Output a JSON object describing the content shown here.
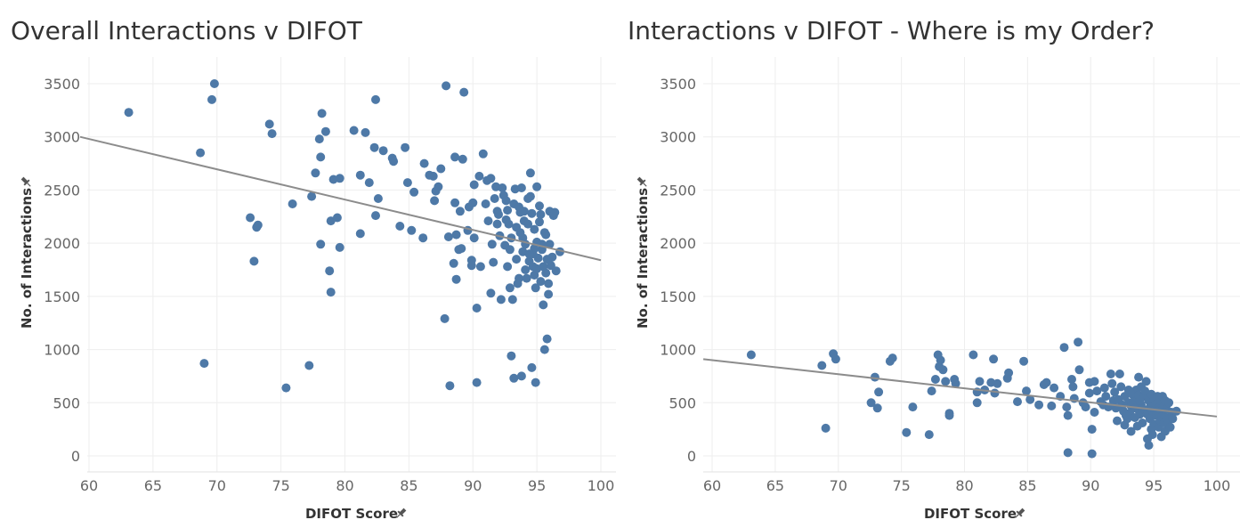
{
  "colors": {
    "point": "#4e79a7",
    "trend": "#8c8c8c",
    "grid": "#eeeeee",
    "zero": "#e2e2e2"
  },
  "chart_data": [
    {
      "type": "scatter",
      "title": "Overall Interactions v DIFOT",
      "xlabel": "DIFOT Score",
      "ylabel": "No. of Interactions",
      "xlim": [
        60,
        100
      ],
      "ylim": [
        0,
        3500
      ],
      "xticks": [
        60,
        65,
        70,
        75,
        80,
        85,
        90,
        95,
        100
      ],
      "yticks": [
        0,
        500,
        1000,
        1500,
        2000,
        2500,
        3000,
        3500
      ],
      "trend": [
        [
          59.3,
          3000
        ],
        [
          100,
          1840
        ]
      ],
      "points": [
        [
          63.1,
          3230
        ],
        [
          68.7,
          2850
        ],
        [
          69.0,
          870
        ],
        [
          69.6,
          3350
        ],
        [
          69.8,
          3500
        ],
        [
          72.6,
          2240
        ],
        [
          72.9,
          1830
        ],
        [
          73.1,
          2150
        ],
        [
          73.2,
          2170
        ],
        [
          74.1,
          3120
        ],
        [
          74.3,
          3030
        ],
        [
          75.4,
          640
        ],
        [
          75.9,
          2370
        ],
        [
          77.2,
          850
        ],
        [
          77.4,
          2440
        ],
        [
          77.7,
          2660
        ],
        [
          78.0,
          2980
        ],
        [
          78.1,
          2810
        ],
        [
          78.1,
          1990
        ],
        [
          78.2,
          3220
        ],
        [
          78.5,
          3050
        ],
        [
          78.8,
          1740
        ],
        [
          78.9,
          2210
        ],
        [
          78.9,
          1540
        ],
        [
          79.1,
          2600
        ],
        [
          79.4,
          2240
        ],
        [
          79.6,
          2610
        ],
        [
          79.6,
          1960
        ],
        [
          80.7,
          3060
        ],
        [
          81.2,
          2640
        ],
        [
          81.2,
          2090
        ],
        [
          81.6,
          3040
        ],
        [
          81.9,
          2570
        ],
        [
          82.3,
          2900
        ],
        [
          82.4,
          2260
        ],
        [
          82.4,
          3350
        ],
        [
          82.6,
          2420
        ],
        [
          83.0,
          2870
        ],
        [
          83.7,
          2800
        ],
        [
          83.8,
          2770
        ],
        [
          84.3,
          2160
        ],
        [
          84.7,
          2900
        ],
        [
          84.9,
          2570
        ],
        [
          85.2,
          2120
        ],
        [
          85.4,
          2480
        ],
        [
          86.1,
          2050
        ],
        [
          86.2,
          2750
        ],
        [
          86.6,
          2640
        ],
        [
          86.9,
          2630
        ],
        [
          87.0,
          2400
        ],
        [
          87.1,
          2490
        ],
        [
          87.3,
          2530
        ],
        [
          87.5,
          2700
        ],
        [
          87.8,
          1290
        ],
        [
          87.9,
          3480
        ],
        [
          88.1,
          2060
        ],
        [
          88.2,
          660
        ],
        [
          88.5,
          1810
        ],
        [
          88.6,
          2810
        ],
        [
          88.6,
          2380
        ],
        [
          88.7,
          2080
        ],
        [
          88.7,
          1660
        ],
        [
          88.9,
          1940
        ],
        [
          89.0,
          2300
        ],
        [
          89.1,
          1950
        ],
        [
          89.2,
          2790
        ],
        [
          89.3,
          3420
        ],
        [
          89.6,
          2120
        ],
        [
          89.9,
          1840
        ],
        [
          89.9,
          1790
        ],
        [
          90.0,
          2380
        ],
        [
          90.1,
          2550
        ],
        [
          90.1,
          2050
        ],
        [
          90.3,
          1390
        ],
        [
          90.3,
          690
        ],
        [
          90.5,
          2630
        ],
        [
          90.8,
          2840
        ],
        [
          91.0,
          2370
        ],
        [
          91.1,
          2590
        ],
        [
          91.2,
          2210
        ],
        [
          91.4,
          1530
        ],
        [
          91.4,
          2610
        ],
        [
          91.6,
          1820
        ],
        [
          91.7,
          2420
        ],
        [
          91.8,
          2530
        ],
        [
          91.9,
          2300
        ],
        [
          92.0,
          2270
        ],
        [
          92.1,
          2070
        ],
        [
          92.2,
          1470
        ],
        [
          92.3,
          2520
        ],
        [
          92.4,
          2450
        ],
        [
          92.5,
          1980
        ],
        [
          92.6,
          2220
        ],
        [
          92.7,
          2310
        ],
        [
          92.7,
          1780
        ],
        [
          92.9,
          1940
        ],
        [
          93.0,
          2050
        ],
        [
          93.0,
          940
        ],
        [
          93.1,
          1470
        ],
        [
          93.2,
          2370
        ],
        [
          93.2,
          730
        ],
        [
          93.3,
          2510
        ],
        [
          93.4,
          1850
        ],
        [
          93.5,
          1620
        ],
        [
          93.6,
          1670
        ],
        [
          93.7,
          2100
        ],
        [
          93.7,
          2290
        ],
        [
          93.8,
          2520
        ],
        [
          93.8,
          750
        ],
        [
          93.9,
          1920
        ],
        [
          94.0,
          2300
        ],
        [
          94.0,
          2210
        ],
        [
          94.1,
          1990
        ],
        [
          94.2,
          1670
        ],
        [
          94.3,
          2180
        ],
        [
          94.4,
          1830
        ],
        [
          94.5,
          2660
        ],
        [
          94.5,
          2440
        ],
        [
          94.6,
          2280
        ],
        [
          94.6,
          830
        ],
        [
          94.7,
          1900
        ],
        [
          94.7,
          1780
        ],
        [
          94.8,
          2130
        ],
        [
          94.8,
          1700
        ],
        [
          94.9,
          1580
        ],
        [
          94.9,
          690
        ],
        [
          95.0,
          2530
        ],
        [
          95.0,
          2010
        ],
        [
          95.1,
          1860
        ],
        [
          95.2,
          2200
        ],
        [
          95.3,
          1640
        ],
        [
          95.4,
          1940
        ],
        [
          95.4,
          1990
        ],
        [
          95.5,
          1420
        ],
        [
          95.5,
          1780
        ],
        [
          95.6,
          1000
        ],
        [
          95.7,
          2080
        ],
        [
          95.7,
          1720
        ],
        [
          95.8,
          1100
        ],
        [
          95.8,
          1850
        ],
        [
          95.9,
          1620
        ],
        [
          95.9,
          1520
        ],
        [
          96.0,
          2300
        ],
        [
          96.0,
          1990
        ],
        [
          96.1,
          1790
        ],
        [
          96.2,
          1870
        ],
        [
          96.3,
          2260
        ],
        [
          96.4,
          2290
        ],
        [
          96.5,
          1740
        ],
        [
          96.8,
          1920
        ],
        [
          92.6,
          2400
        ],
        [
          93.4,
          2150
        ],
        [
          94.3,
          2420
        ],
        [
          95.2,
          2350
        ],
        [
          93.9,
          2050
        ],
        [
          94.8,
          1950
        ],
        [
          95.6,
          2100
        ],
        [
          94.1,
          1750
        ],
        [
          93.6,
          2340
        ],
        [
          95.0,
          1760
        ],
        [
          94.4,
          1900
        ],
        [
          95.3,
          2270
        ],
        [
          92.8,
          2180
        ],
        [
          91.5,
          1990
        ],
        [
          90.6,
          1780
        ],
        [
          89.7,
          2340
        ],
        [
          91.9,
          2180
        ],
        [
          92.9,
          1580
        ]
      ]
    },
    {
      "type": "scatter",
      "title": "Interactions v DIFOT - Where is my Order?",
      "xlabel": "DIFOT Score",
      "ylabel": "No. of Interactions",
      "xlim": [
        60,
        100
      ],
      "ylim": [
        0,
        3500
      ],
      "xticks": [
        60,
        65,
        70,
        75,
        80,
        85,
        90,
        95,
        100
      ],
      "yticks": [
        0,
        500,
        1000,
        1500,
        2000,
        2500,
        3000,
        3500
      ],
      "trend": [
        [
          59.3,
          910
        ],
        [
          100,
          370
        ]
      ],
      "points": [
        [
          63.1,
          950
        ],
        [
          68.7,
          850
        ],
        [
          69.0,
          260
        ],
        [
          69.6,
          960
        ],
        [
          69.8,
          910
        ],
        [
          72.6,
          500
        ],
        [
          72.9,
          740
        ],
        [
          73.1,
          450
        ],
        [
          73.2,
          600
        ],
        [
          74.1,
          890
        ],
        [
          74.3,
          920
        ],
        [
          75.4,
          220
        ],
        [
          75.9,
          460
        ],
        [
          77.2,
          200
        ],
        [
          77.4,
          610
        ],
        [
          77.7,
          720
        ],
        [
          77.9,
          950
        ],
        [
          78.1,
          900
        ],
        [
          78.0,
          840
        ],
        [
          78.3,
          810
        ],
        [
          78.5,
          700
        ],
        [
          78.8,
          400
        ],
        [
          78.8,
          380
        ],
        [
          79.2,
          720
        ],
        [
          79.3,
          680
        ],
        [
          80.7,
          950
        ],
        [
          81.0,
          600
        ],
        [
          81.0,
          500
        ],
        [
          81.2,
          700
        ],
        [
          81.6,
          620
        ],
        [
          82.1,
          690
        ],
        [
          82.3,
          910
        ],
        [
          82.4,
          590
        ],
        [
          82.6,
          680
        ],
        [
          83.4,
          730
        ],
        [
          83.5,
          780
        ],
        [
          84.2,
          510
        ],
        [
          84.7,
          890
        ],
        [
          84.9,
          610
        ],
        [
          85.2,
          530
        ],
        [
          85.9,
          480
        ],
        [
          86.3,
          670
        ],
        [
          86.5,
          690
        ],
        [
          86.9,
          470
        ],
        [
          87.1,
          640
        ],
        [
          87.6,
          560
        ],
        [
          87.9,
          1020
        ],
        [
          88.1,
          460
        ],
        [
          88.2,
          380
        ],
        [
          88.2,
          30
        ],
        [
          88.5,
          720
        ],
        [
          88.6,
          650
        ],
        [
          88.7,
          540
        ],
        [
          89.0,
          1070
        ],
        [
          89.1,
          810
        ],
        [
          89.4,
          500
        ],
        [
          89.6,
          460
        ],
        [
          89.9,
          590
        ],
        [
          89.9,
          690
        ],
        [
          90.1,
          250
        ],
        [
          90.1,
          20
        ],
        [
          90.3,
          700
        ],
        [
          90.3,
          410
        ],
        [
          90.5,
          610
        ],
        [
          90.8,
          510
        ],
        [
          91.0,
          480
        ],
        [
          91.1,
          640
        ],
        [
          91.2,
          560
        ],
        [
          91.4,
          460
        ],
        [
          91.6,
          770
        ],
        [
          91.7,
          680
        ],
        [
          91.8,
          520
        ],
        [
          91.9,
          600
        ],
        [
          92.0,
          450
        ],
        [
          92.1,
          330
        ],
        [
          92.2,
          530
        ],
        [
          92.3,
          770
        ],
        [
          92.4,
          650
        ],
        [
          92.5,
          480
        ],
        [
          92.6,
          420
        ],
        [
          92.7,
          560
        ],
        [
          92.7,
          290
        ],
        [
          92.9,
          350
        ],
        [
          93.0,
          620
        ],
        [
          93.0,
          500
        ],
        [
          93.1,
          400
        ],
        [
          93.2,
          470
        ],
        [
          93.2,
          230
        ],
        [
          93.3,
          580
        ],
        [
          93.4,
          510
        ],
        [
          93.5,
          360
        ],
        [
          93.6,
          620
        ],
        [
          93.7,
          440
        ],
        [
          93.7,
          280
        ],
        [
          93.8,
          570
        ],
        [
          93.8,
          740
        ],
        [
          93.9,
          390
        ],
        [
          94.0,
          650
        ],
        [
          94.0,
          480
        ],
        [
          94.1,
          310
        ],
        [
          94.2,
          560
        ],
        [
          94.3,
          430
        ],
        [
          94.4,
          700
        ],
        [
          94.5,
          160
        ],
        [
          94.5,
          390
        ],
        [
          94.6,
          520
        ],
        [
          94.6,
          100
        ],
        [
          94.7,
          460
        ],
        [
          94.7,
          350
        ],
        [
          94.8,
          250
        ],
        [
          94.8,
          580
        ],
        [
          94.9,
          420
        ],
        [
          94.9,
          200
        ],
        [
          95.0,
          530
        ],
        [
          95.0,
          300
        ],
        [
          95.1,
          480
        ],
        [
          95.2,
          380
        ],
        [
          95.3,
          560
        ],
        [
          95.4,
          270
        ],
        [
          95.4,
          450
        ],
        [
          95.5,
          330
        ],
        [
          95.5,
          520
        ],
        [
          95.6,
          180
        ],
        [
          95.7,
          400
        ],
        [
          95.7,
          560
        ],
        [
          95.8,
          310
        ],
        [
          95.8,
          470
        ],
        [
          95.9,
          230
        ],
        [
          95.9,
          520
        ],
        [
          96.0,
          360
        ],
        [
          96.0,
          440
        ],
        [
          96.1,
          300
        ],
        [
          96.2,
          500
        ],
        [
          96.3,
          270
        ],
        [
          96.4,
          410
        ],
        [
          96.5,
          350
        ],
        [
          96.8,
          420
        ],
        [
          92.4,
          460
        ],
        [
          93.1,
          600
        ],
        [
          93.9,
          520
        ],
        [
          92.8,
          380
        ],
        [
          94.3,
          610
        ],
        [
          95.1,
          430
        ],
        [
          93.5,
          450
        ]
      ]
    }
  ]
}
